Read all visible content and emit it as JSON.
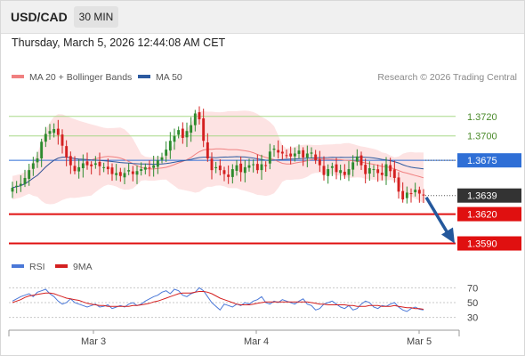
{
  "header": {
    "symbol": "USD/CAD",
    "timeframe": "30 MIN"
  },
  "timestamp": "Thursday, March 5, 2026 12:44:08 AM CET",
  "legend": {
    "ma20": "MA 20 + Bollinger Bands",
    "ma50": "MA 50",
    "credit": "Research © 2026 Trading Central",
    "rsi": "RSI",
    "ma9": "9MA"
  },
  "colors": {
    "up": "#2e8b2e",
    "down": "#d42020",
    "ma20": "#f08080",
    "ma50": "#2c5aa0",
    "bollinger_fill": "#fde3e3",
    "pivot": "#2f6fd6",
    "support": "#e01010",
    "resistance": "#a8d888",
    "arrow": "#24589c",
    "rsi_line": "#4a78d8",
    "rsi_ma": "#d42020"
  },
  "chart_data": {
    "type": "candlestick",
    "y_range": [
      1.3575,
      1.3748
    ],
    "x_labels": [
      "Mar 3",
      "Mar 4",
      "Mar 5"
    ],
    "levels": [
      {
        "kind": "resistance",
        "label": "1.3720",
        "value": 1.372
      },
      {
        "kind": "resistance",
        "label": "1.3700",
        "value": 1.37
      },
      {
        "kind": "pivot",
        "label": "1.3675",
        "value": 1.3675
      },
      {
        "kind": "last",
        "label": "1.3639",
        "value": 1.3639
      },
      {
        "kind": "support",
        "label": "1.3620",
        "value": 1.362
      },
      {
        "kind": "support",
        "label": "1.3590",
        "value": 1.359
      }
    ],
    "close_series": [
      1.3647,
      1.3649,
      1.3651,
      1.3657,
      1.3665,
      1.3672,
      1.3677,
      1.3694,
      1.3702,
      1.3705,
      1.3707,
      1.3701,
      1.369,
      1.3678,
      1.367,
      1.3664,
      1.3668,
      1.3672,
      1.367,
      1.3669,
      1.3672,
      1.3669,
      1.3668,
      1.3666,
      1.3661,
      1.3662,
      1.3659,
      1.3662,
      1.3665,
      1.3661,
      1.3664,
      1.3666,
      1.3668,
      1.3667,
      1.367,
      1.3675,
      1.3678,
      1.3686,
      1.3695,
      1.37,
      1.3706,
      1.3698,
      1.3705,
      1.3711,
      1.3723,
      1.3717,
      1.3695,
      1.3677,
      1.3665,
      1.3668,
      1.3665,
      1.3661,
      1.3658,
      1.3666,
      1.367,
      1.3663,
      1.3668,
      1.367,
      1.3671,
      1.3665,
      1.3671,
      1.367,
      1.3684,
      1.3687,
      1.3683,
      1.3682,
      1.368,
      1.3679,
      1.3682,
      1.3685,
      1.3678,
      1.3682,
      1.3683,
      1.3675,
      1.367,
      1.366,
      1.3666,
      1.3669,
      1.3663,
      1.3665,
      1.366,
      1.3666,
      1.3673,
      1.3679,
      1.367,
      1.3661,
      1.3667,
      1.3666,
      1.3662,
      1.366,
      1.3671,
      1.3664,
      1.3657,
      1.3643,
      1.3635,
      1.3642,
      1.3641,
      1.3645,
      1.3641,
      1.3639
    ],
    "rsi": {
      "ticks": [
        70,
        50,
        30
      ],
      "y_range": [
        20,
        80
      ],
      "rsi_series": [
        52,
        55,
        58,
        60,
        62,
        58,
        64,
        66,
        68,
        62,
        58,
        52,
        48,
        50,
        55,
        50,
        48,
        46,
        44,
        46,
        48,
        44,
        45,
        47,
        42,
        44,
        46,
        44,
        48,
        50,
        46,
        48,
        52,
        55,
        58,
        60,
        64,
        66,
        62,
        68,
        66,
        60,
        58,
        62,
        64,
        70,
        66,
        58,
        50,
        45,
        40,
        48,
        46,
        44,
        48,
        46,
        50,
        48,
        52,
        54,
        58,
        50,
        48,
        52,
        50,
        54,
        52,
        50,
        48,
        52,
        55,
        48,
        46,
        40,
        42,
        48,
        50,
        52,
        48,
        44,
        42,
        46,
        40,
        42,
        48,
        52,
        50,
        44,
        42,
        46,
        45,
        48,
        50,
        44,
        40,
        38,
        42,
        44,
        41,
        40
      ],
      "ma9_series": [
        50,
        52,
        54,
        57,
        59,
        60,
        61,
        62,
        63,
        63,
        62,
        60,
        58,
        56,
        55,
        54,
        53,
        51,
        49,
        48,
        47,
        46,
        46,
        45,
        45,
        45,
        45,
        45,
        45,
        46,
        46,
        47,
        48,
        49,
        51,
        52,
        54,
        56,
        58,
        60,
        62,
        63,
        63,
        63,
        64,
        65,
        65,
        64,
        62,
        59,
        56,
        54,
        52,
        50,
        48,
        47,
        47,
        47,
        48,
        49,
        50,
        51,
        51,
        51,
        51,
        51,
        51,
        51,
        51,
        51,
        51,
        51,
        50,
        49,
        48,
        48,
        47,
        47,
        47,
        47,
        47,
        46,
        46,
        45,
        45,
        45,
        46,
        46,
        46,
        45,
        45,
        45,
        46,
        45,
        44,
        43,
        43,
        42,
        42,
        41
      ]
    }
  }
}
